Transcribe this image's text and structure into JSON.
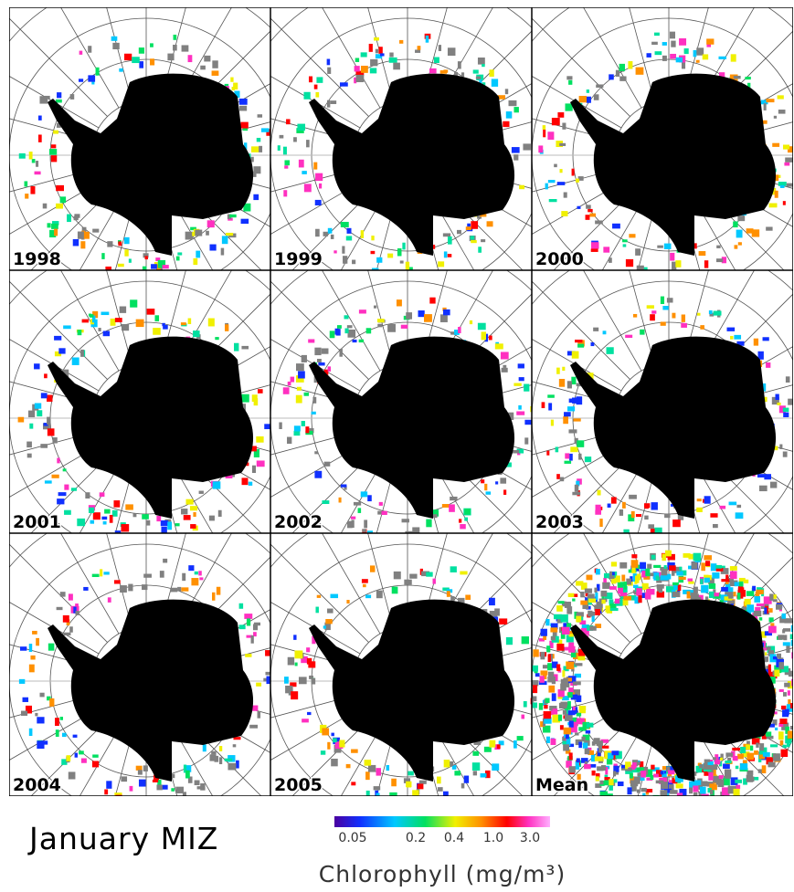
{
  "panels": [
    {
      "label": "1998"
    },
    {
      "label": "1999"
    },
    {
      "label": "2000"
    },
    {
      "label": "2001"
    },
    {
      "label": "2002"
    },
    {
      "label": "2003"
    },
    {
      "label": "2004"
    },
    {
      "label": "2005"
    },
    {
      "label": "Mean"
    }
  ],
  "title": "January MIZ",
  "colorbar": {
    "label": "Chlorophyll (mg/m³)",
    "ticks": [
      "0.05",
      "0.2",
      "0.4",
      "1.0",
      "3.0"
    ]
  }
}
